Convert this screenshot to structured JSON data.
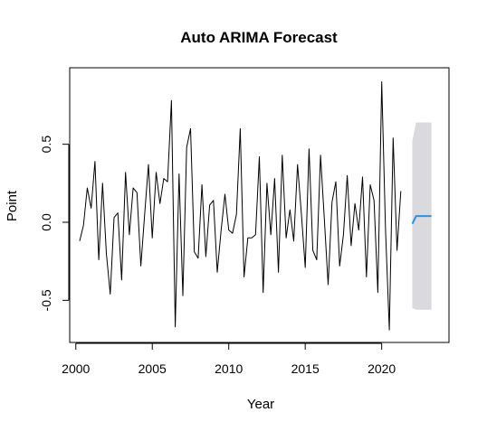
{
  "chart_data": {
    "type": "line",
    "title": "Auto ARIMA Forecast",
    "xlabel": "Year",
    "ylabel": "Point",
    "xlim": [
      1999.6,
      2024.4
    ],
    "ylim": [
      -0.77,
      0.99
    ],
    "x_ticks": [
      2000,
      2005,
      2010,
      2015,
      2020
    ],
    "x_tick_labels": [
      "2000",
      "2005",
      "2010",
      "2015",
      "2020"
    ],
    "y_ticks": [
      -0.5,
      0.0,
      0.5
    ],
    "y_tick_labels": [
      "-0.5",
      "0.0",
      "0.5"
    ],
    "grid": false,
    "series": [
      {
        "kind": "observed",
        "color": "#000000",
        "start": 2000.25,
        "step": 0.25,
        "values": [
          -0.12,
          -0.02,
          0.22,
          0.09,
          0.39,
          -0.24,
          0.25,
          -0.2,
          -0.46,
          0.03,
          0.06,
          -0.37,
          0.32,
          -0.08,
          0.22,
          0.19,
          -0.28,
          0.05,
          0.37,
          -0.1,
          0.32,
          0.12,
          0.28,
          0.26,
          0.78,
          -0.67,
          0.31,
          -0.47,
          0.48,
          0.6,
          -0.19,
          -0.23,
          0.24,
          -0.22,
          0.11,
          0.14,
          -0.32,
          -0.05,
          0.18,
          -0.05,
          -0.07,
          0.05,
          0.6,
          -0.35,
          -0.1,
          -0.1,
          -0.08,
          0.42,
          -0.45,
          0.25,
          -0.08,
          0.28,
          -0.32,
          0.43,
          -0.1,
          0.08,
          -0.12,
          0.37,
          0.05,
          -0.29,
          0.47,
          -0.18,
          -0.24,
          0.43,
          0.02,
          -0.4,
          0.13,
          0.26,
          -0.28,
          -0.08,
          0.3,
          -0.15,
          0.12,
          -0.05,
          0.29,
          -0.35,
          0.24,
          0.14,
          -0.45,
          0.9,
          -0.05,
          -0.69,
          0.54,
          -0.18,
          0.2
        ]
      },
      {
        "kind": "forecast",
        "color": "#2f8fe0",
        "x": [
          2022.0,
          2022.25,
          2022.5,
          2022.75,
          2023.0,
          2023.25
        ],
        "values": [
          -0.01,
          0.04,
          0.04,
          0.04,
          0.04,
          0.04
        ]
      }
    ],
    "intervals": [
      {
        "kind": "prediction-interval",
        "color": "#d9d9de",
        "x": [
          2022.0,
          2022.25,
          2022.5,
          2022.75,
          2023.0,
          2023.25
        ],
        "lower": [
          -0.55,
          -0.56,
          -0.56,
          -0.56,
          -0.56,
          -0.56
        ],
        "upper": [
          0.52,
          0.64,
          0.64,
          0.64,
          0.64,
          0.64
        ]
      }
    ]
  }
}
